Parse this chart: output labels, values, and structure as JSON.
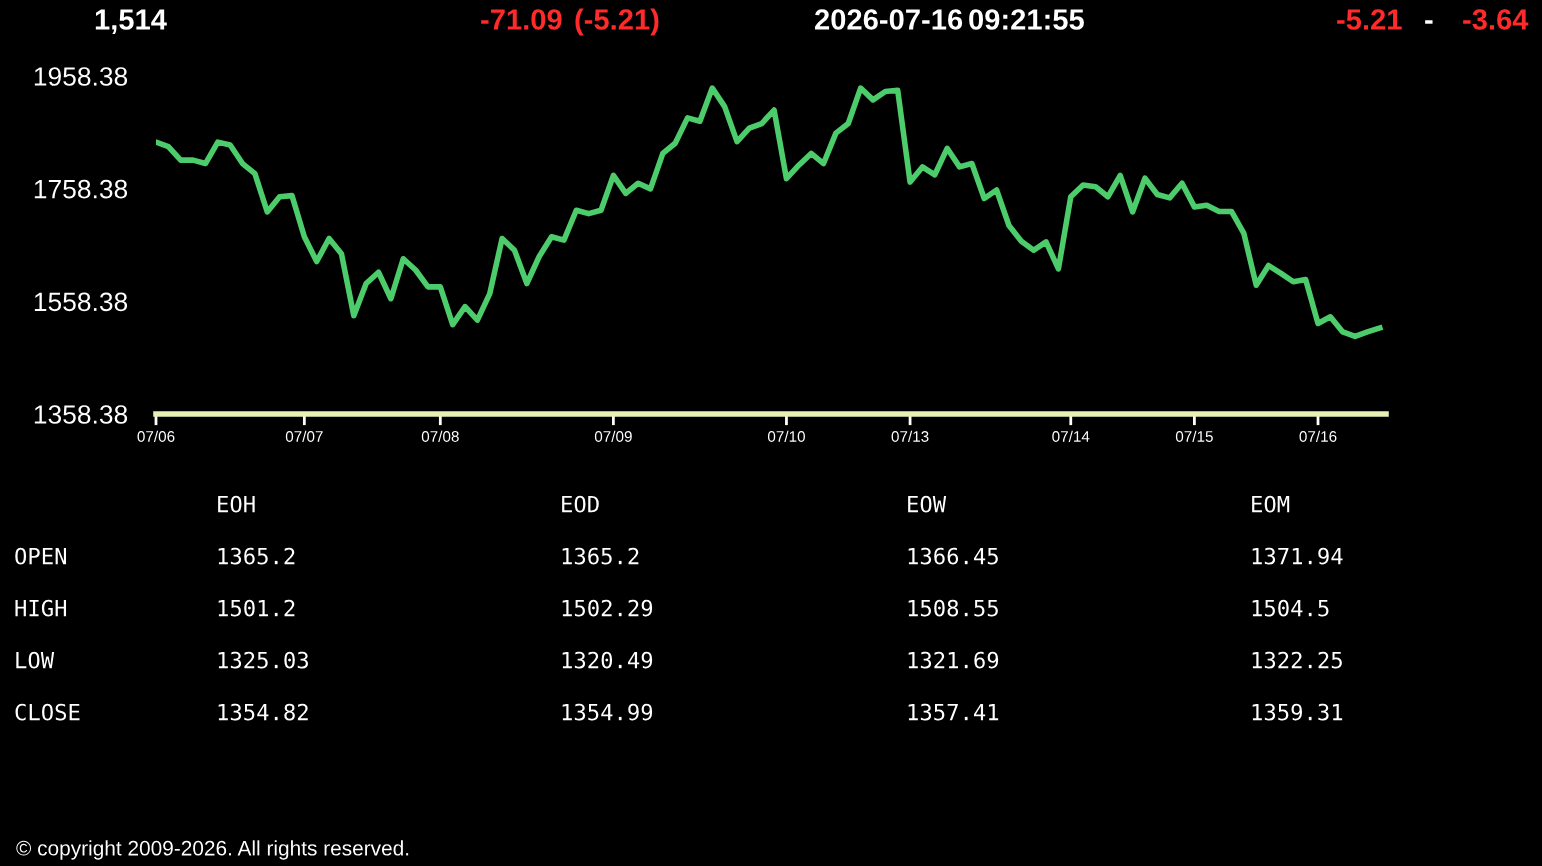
{
  "chart_data": {
    "type": "line",
    "categories": [
      "07/06",
      null,
      null,
      null,
      null,
      null,
      null,
      null,
      null,
      null,
      null,
      null,
      "07/07",
      null,
      null,
      null,
      null,
      null,
      null,
      null,
      null,
      null,
      null,
      "07/08",
      null,
      null,
      null,
      null,
      null,
      null,
      null,
      null,
      null,
      null,
      null,
      null,
      null,
      "07/09",
      null,
      null,
      null,
      null,
      null,
      null,
      null,
      null,
      null,
      null,
      null,
      null,
      null,
      "07/10",
      null,
      null,
      null,
      null,
      null,
      null,
      null,
      null,
      null,
      "07/13",
      null,
      null,
      null,
      null,
      null,
      null,
      null,
      null,
      null,
      null,
      null,
      null,
      "07/14",
      null,
      null,
      null,
      null,
      null,
      null,
      null,
      null,
      null,
      "07/15",
      null,
      null,
      null,
      null,
      null,
      null,
      null,
      null,
      null,
      "07/16",
      null,
      null,
      null,
      null,
      null
    ],
    "series": [
      {
        "color": "#4ccc6a",
        "values": [
          1841,
          1833,
          1809,
          1809,
          1803,
          1841,
          1836,
          1803,
          1785,
          1717,
          1744,
          1746,
          1673,
          1629,
          1670,
          1643,
          1533,
          1590,
          1610,
          1563,
          1634,
          1614,
          1584,
          1584,
          1517,
          1549,
          1525,
          1572,
          1670,
          1649,
          1590,
          1638,
          1673,
          1667,
          1720,
          1714,
          1720,
          1782,
          1750,
          1768,
          1758,
          1821,
          1839,
          1884,
          1878,
          1937,
          1904,
          1842,
          1866,
          1874,
          1898,
          1776,
          1800,
          1821,
          1803,
          1857,
          1874,
          1937,
          1916,
          1931,
          1933,
          1770,
          1797,
          1783,
          1830,
          1797,
          1803,
          1741,
          1756,
          1693,
          1665,
          1649,
          1664,
          1616,
          1744,
          1765,
          1762,
          1744,
          1782,
          1717,
          1777,
          1748,
          1742,
          1768,
          1726,
          1729,
          1718,
          1718,
          1679,
          1587,
          1622,
          1608,
          1593,
          1597,
          1519,
          1531,
          1504,
          1496,
          1504,
          1511
        ]
      }
    ],
    "ylim": [
      1358.38,
      1958.38
    ],
    "yticks": [
      1358.38,
      1558.38,
      1758.38,
      1958.38
    ],
    "grid": false,
    "legend": false,
    "marker": "none",
    "line_style": "solid",
    "annotations": [
      "1,514",
      "-71.09",
      "(-5.21)",
      "2026-07-16",
      "09:21:55",
      "-5.21",
      "-",
      "-3.64",
      "EOH",
      "EOD",
      "EOW",
      "EOM",
      "OPEN",
      "1365.2",
      "1365.2",
      "1366.45",
      "1371.94",
      "HIGH",
      "1501.2",
      "1502.29",
      "1508.55",
      "1504.5",
      "LOW",
      "1325.03",
      "1320.49",
      "1321.69",
      "1322.25",
      "CLOSE",
      "1354.82",
      "1354.99",
      "1357.41",
      "1359.31",
      "© copyright 2009-2026. All rights reserved."
    ]
  }
}
